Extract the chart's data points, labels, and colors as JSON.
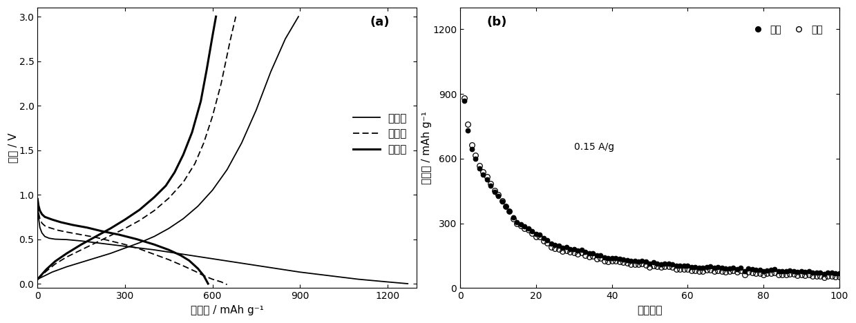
{
  "panel_a_label": "(a)",
  "panel_b_label": "(b)",
  "panel_a": {
    "xlabel": "比容量 / mAh g⁻¹",
    "ylabel": "电压 / V",
    "xlim": [
      0,
      1300
    ],
    "ylim": [
      -0.05,
      3.1
    ],
    "xticks": [
      0,
      300,
      600,
      900,
      1200
    ],
    "yticks": [
      0.0,
      0.5,
      1.0,
      1.5,
      2.0,
      2.5,
      3.0
    ],
    "legend_entries": [
      "第一圈",
      "第二圈",
      "第三圈"
    ]
  },
  "panel_b": {
    "xlabel": "循环次数",
    "ylabel": "比容量 / mAh g⁻¹",
    "xlim": [
      0,
      100
    ],
    "ylim": [
      0,
      1300
    ],
    "xticks": [
      0,
      20,
      40,
      60,
      80,
      100
    ],
    "yticks": [
      0,
      300,
      600,
      900,
      1200
    ],
    "label_charge": "充电",
    "label_discharge": "放电",
    "annotation": "0.15 A/g"
  }
}
